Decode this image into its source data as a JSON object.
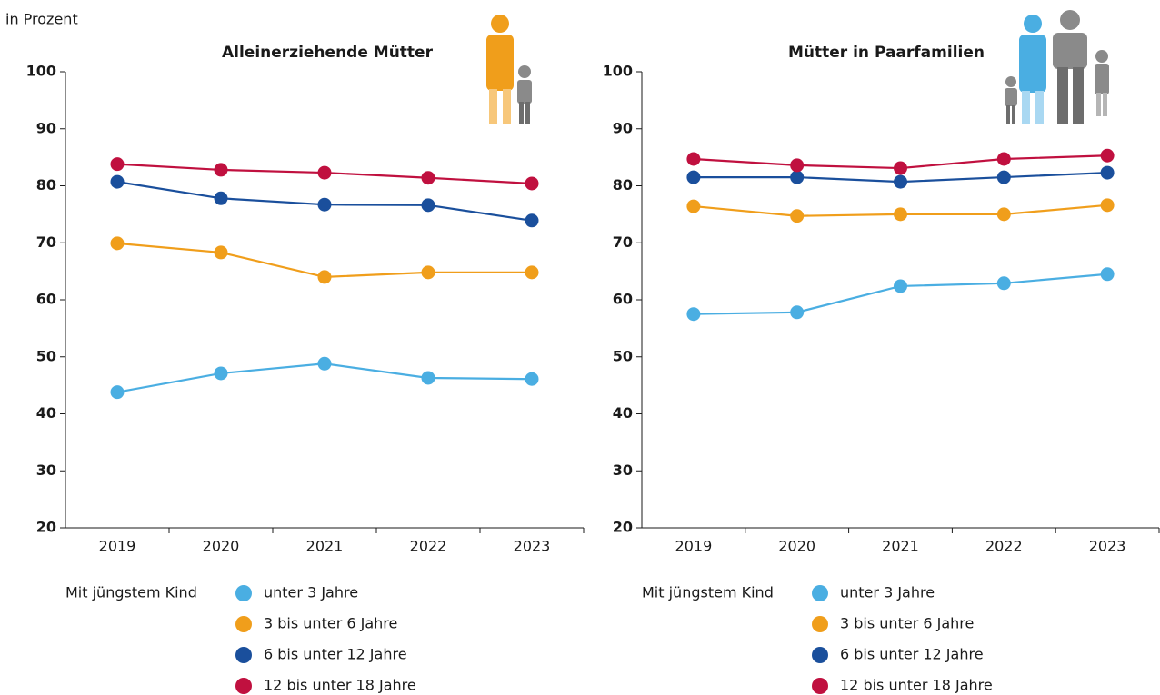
{
  "unit_label": "in Prozent",
  "chart_data": [
    {
      "type": "line",
      "title": "Alleinerziehende Mütter",
      "legend_title": "Mit jüngstem Kind",
      "categories": [
        "2019",
        "2020",
        "2021",
        "2022",
        "2023"
      ],
      "ylim": [
        20,
        100
      ],
      "yticks": [
        20,
        30,
        40,
        50,
        60,
        70,
        80,
        90,
        100
      ],
      "grid": false,
      "series": [
        {
          "name": "unter 3 Jahre",
          "color": "#4aaee2",
          "values": [
            43.8,
            47.1,
            48.8,
            46.3,
            46.1
          ]
        },
        {
          "name": "3 bis unter 6 Jahre",
          "color": "#f09e1b",
          "values": [
            69.9,
            68.3,
            64.0,
            64.8,
            64.8
          ]
        },
        {
          "name": "6 bis unter 12 Jahre",
          "color": "#1a4f9c",
          "values": [
            80.7,
            77.8,
            76.7,
            76.6,
            73.9
          ]
        },
        {
          "name": "12 bis unter 18 Jahre",
          "color": "#c0103f",
          "values": [
            83.8,
            82.8,
            82.3,
            81.4,
            80.4
          ]
        }
      ]
    },
    {
      "type": "line",
      "title": "Mütter in Paarfamilien",
      "legend_title": "Mit jüngstem Kind",
      "categories": [
        "2019",
        "2020",
        "2021",
        "2022",
        "2023"
      ],
      "ylim": [
        20,
        100
      ],
      "yticks": [
        20,
        30,
        40,
        50,
        60,
        70,
        80,
        90,
        100
      ],
      "grid": false,
      "series": [
        {
          "name": "unter 3 Jahre",
          "color": "#4aaee2",
          "values": [
            57.5,
            57.8,
            62.4,
            62.9,
            64.5
          ]
        },
        {
          "name": "3 bis unter 6 Jahre",
          "color": "#f09e1b",
          "values": [
            76.4,
            74.7,
            75.0,
            75.0,
            76.6
          ]
        },
        {
          "name": "6 bis unter 12 Jahre",
          "color": "#1a4f9c",
          "values": [
            81.5,
            81.5,
            80.7,
            81.5,
            82.3
          ]
        },
        {
          "name": "12 bis unter 18 Jahre",
          "color": "#c0103f",
          "values": [
            84.7,
            83.6,
            83.1,
            84.7,
            85.3
          ]
        }
      ]
    }
  ]
}
